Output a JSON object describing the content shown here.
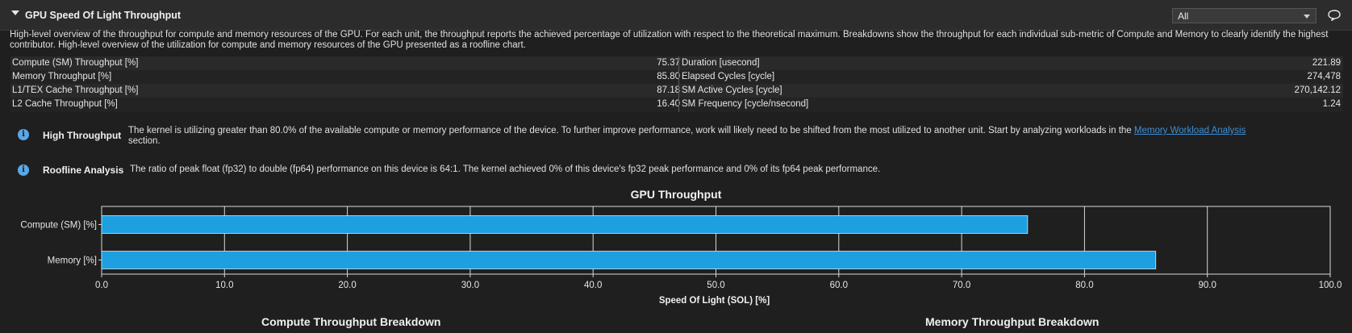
{
  "header": {
    "title": "GPU Speed Of Light Throughput",
    "filter_value": "All"
  },
  "description": "High-level overview of the throughput for compute and memory resources of the GPU. For each unit, the throughput reports the achieved percentage of utilization with respect to the theoretical maximum. Breakdowns show the throughput for each individual sub-metric of Compute and Memory to clearly identify the highest contributor. High-level overview of the utilization for compute and memory resources of the GPU presented as a roofline chart.",
  "metrics_left": [
    {
      "name": "Compute (SM) Throughput [%]",
      "value": "75.37"
    },
    {
      "name": "Memory Throughput [%]",
      "value": "85.80"
    },
    {
      "name": "L1/TEX Cache Throughput [%]",
      "value": "87.18"
    },
    {
      "name": "L2 Cache Throughput [%]",
      "value": "16.40"
    }
  ],
  "metrics_right": [
    {
      "name": "Duration [usecond]",
      "value": "221.89"
    },
    {
      "name": "Elapsed Cycles [cycle]",
      "value": "274,478"
    },
    {
      "name": "SM Active Cycles [cycle]",
      "value": "270,142.12"
    },
    {
      "name": "SM Frequency [cycle/nsecond]",
      "value": "1.24"
    }
  ],
  "rules": [
    {
      "title": "High Throughput",
      "text_before": "The kernel is utilizing greater than 80.0% of the available compute or memory performance of the device. To further improve performance, work will likely need to be shifted from the most utilized to another unit. Start by analyzing workloads in the ",
      "link": "Memory Workload Analysis",
      "text_after": "section."
    },
    {
      "title": "Roofline Analysis",
      "text": "The ratio of peak float (fp32) to double (fp64) performance on this device is 64:1. The kernel achieved 0% of this device's fp32 peak performance and 0% of its fp64 peak performance."
    }
  ],
  "chart_data": {
    "type": "bar",
    "orientation": "horizontal",
    "title": "GPU Throughput",
    "categories": [
      "Compute (SM) [%]",
      "Memory [%]"
    ],
    "values": [
      75.37,
      85.8
    ],
    "xlabel": "Speed Of Light (SOL) [%]",
    "ylabel": "",
    "xlim": [
      0,
      100
    ],
    "xticks": [
      "0.0",
      "10.0",
      "20.0",
      "30.0",
      "40.0",
      "50.0",
      "60.0",
      "70.0",
      "80.0",
      "90.0",
      "100.0"
    ],
    "grid": true,
    "bar_color": "#1e9fe0"
  },
  "breakdowns": {
    "compute_title": "Compute Throughput Breakdown",
    "memory_title": "Memory Throughput Breakdown"
  }
}
